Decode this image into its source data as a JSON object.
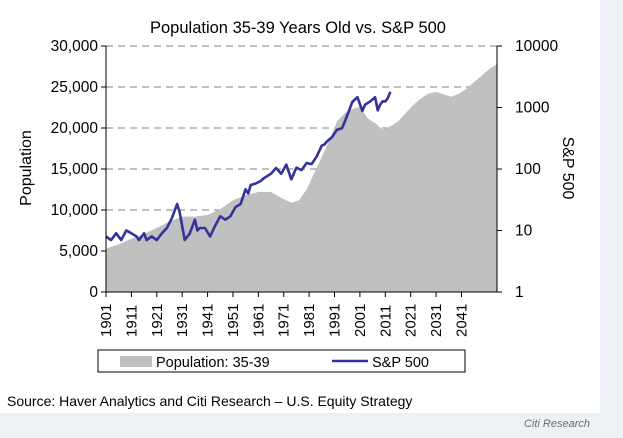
{
  "source_note": "Source: Haver Analytics and Citi Research – U.S. Equity Strategy",
  "footer_brand": "Citi Research",
  "colors": {
    "population_fill": "#c0c0c0",
    "sp500_line": "#333399",
    "gridline": "#808080",
    "page_band": "#edf1f6"
  },
  "chart_data": {
    "type": "area",
    "title": "Population 35-39 Years Old vs. S&P 500",
    "left_axis": {
      "label": "Population",
      "min": 0,
      "max": 30000,
      "ticks": [
        0,
        5000,
        10000,
        15000,
        20000,
        25000,
        30000
      ],
      "tick_labels": [
        "0",
        "5,000",
        "10,000",
        "15,000",
        "20,000",
        "25,000",
        "30,000"
      ]
    },
    "right_axis": {
      "label": "S&P 500",
      "scale": "log",
      "min": 1,
      "max": 10000,
      "ticks": [
        1,
        10,
        100,
        1000,
        10000
      ],
      "tick_labels": [
        "1",
        "10",
        "100",
        "1000",
        "10000"
      ]
    },
    "x_axis": {
      "min": 1901,
      "max": 2055,
      "ticks": [
        1901,
        1911,
        1921,
        1931,
        1941,
        1951,
        1961,
        1971,
        1981,
        1991,
        2001,
        2011,
        2021,
        2031,
        2041
      ],
      "tick_labels": [
        "1901",
        "1911",
        "1921",
        "1931",
        "1941",
        "1951",
        "1961",
        "1971",
        "1981",
        "1991",
        "2001",
        "2011",
        "2021",
        "2031",
        "2041"
      ]
    },
    "grid": "horizontal dashed",
    "legend_position": "bottom",
    "series": [
      {
        "name": "Population: 35-39",
        "type": "area",
        "axis": "left",
        "points": [
          [
            1901,
            5300
          ],
          [
            1906,
            5800
          ],
          [
            1911,
            6500
          ],
          [
            1916,
            7100
          ],
          [
            1921,
            7800
          ],
          [
            1926,
            8600
          ],
          [
            1931,
            9200
          ],
          [
            1936,
            9200
          ],
          [
            1941,
            9400
          ],
          [
            1946,
            10100
          ],
          [
            1951,
            11200
          ],
          [
            1956,
            11800
          ],
          [
            1961,
            12200
          ],
          [
            1966,
            12200
          ],
          [
            1971,
            11300
          ],
          [
            1974,
            10900
          ],
          [
            1977,
            11200
          ],
          [
            1980,
            12500
          ],
          [
            1983,
            14500
          ],
          [
            1986,
            16500
          ],
          [
            1989,
            18500
          ],
          [
            1992,
            20800
          ],
          [
            1995,
            21800
          ],
          [
            1998,
            22300
          ],
          [
            2001,
            22600
          ],
          [
            2004,
            21200
          ],
          [
            2007,
            20600
          ],
          [
            2010,
            19800
          ],
          [
            2013,
            20200
          ],
          [
            2016,
            20800
          ],
          [
            2019,
            21800
          ],
          [
            2022,
            22800
          ],
          [
            2025,
            23600
          ],
          [
            2028,
            24200
          ],
          [
            2031,
            24400
          ],
          [
            2034,
            24100
          ],
          [
            2037,
            23800
          ],
          [
            2040,
            24200
          ],
          [
            2043,
            24800
          ],
          [
            2046,
            25600
          ],
          [
            2049,
            26400
          ],
          [
            2052,
            27200
          ],
          [
            2055,
            27800
          ]
        ]
      },
      {
        "name": "S&P 500",
        "type": "line",
        "axis": "right",
        "points": [
          [
            1901,
            8
          ],
          [
            1903,
            7
          ],
          [
            1905,
            9
          ],
          [
            1907,
            7
          ],
          [
            1909,
            10
          ],
          [
            1911,
            9
          ],
          [
            1913,
            8
          ],
          [
            1914,
            7
          ],
          [
            1916,
            9
          ],
          [
            1917,
            7
          ],
          [
            1919,
            8
          ],
          [
            1921,
            7
          ],
          [
            1923,
            9
          ],
          [
            1925,
            11
          ],
          [
            1927,
            16
          ],
          [
            1929,
            27
          ],
          [
            1930,
            20
          ],
          [
            1932,
            7
          ],
          [
            1934,
            9
          ],
          [
            1936,
            15
          ],
          [
            1937,
            10
          ],
          [
            1938,
            11
          ],
          [
            1940,
            11
          ],
          [
            1942,
            8
          ],
          [
            1944,
            12
          ],
          [
            1946,
            17
          ],
          [
            1948,
            15
          ],
          [
            1950,
            17
          ],
          [
            1952,
            24
          ],
          [
            1954,
            27
          ],
          [
            1956,
            47
          ],
          [
            1957,
            40
          ],
          [
            1958,
            55
          ],
          [
            1960,
            58
          ],
          [
            1962,
            64
          ],
          [
            1963,
            70
          ],
          [
            1966,
            84
          ],
          [
            1968,
            104
          ],
          [
            1970,
            84
          ],
          [
            1972,
            118
          ],
          [
            1974,
            68
          ],
          [
            1976,
            105
          ],
          [
            1978,
            96
          ],
          [
            1980,
            125
          ],
          [
            1982,
            120
          ],
          [
            1984,
            160
          ],
          [
            1986,
            240
          ],
          [
            1987,
            250
          ],
          [
            1988,
            280
          ],
          [
            1990,
            330
          ],
          [
            1992,
            435
          ],
          [
            1994,
            460
          ],
          [
            1996,
            740
          ],
          [
            1998,
            1230
          ],
          [
            2000,
            1470
          ],
          [
            2002,
            880
          ],
          [
            2003,
            1110
          ],
          [
            2005,
            1250
          ],
          [
            2007,
            1470
          ],
          [
            2008,
            900
          ],
          [
            2009,
            1120
          ],
          [
            2010,
            1260
          ],
          [
            2011,
            1250
          ],
          [
            2012,
            1420
          ],
          [
            2013,
            1800
          ]
        ]
      }
    ]
  }
}
